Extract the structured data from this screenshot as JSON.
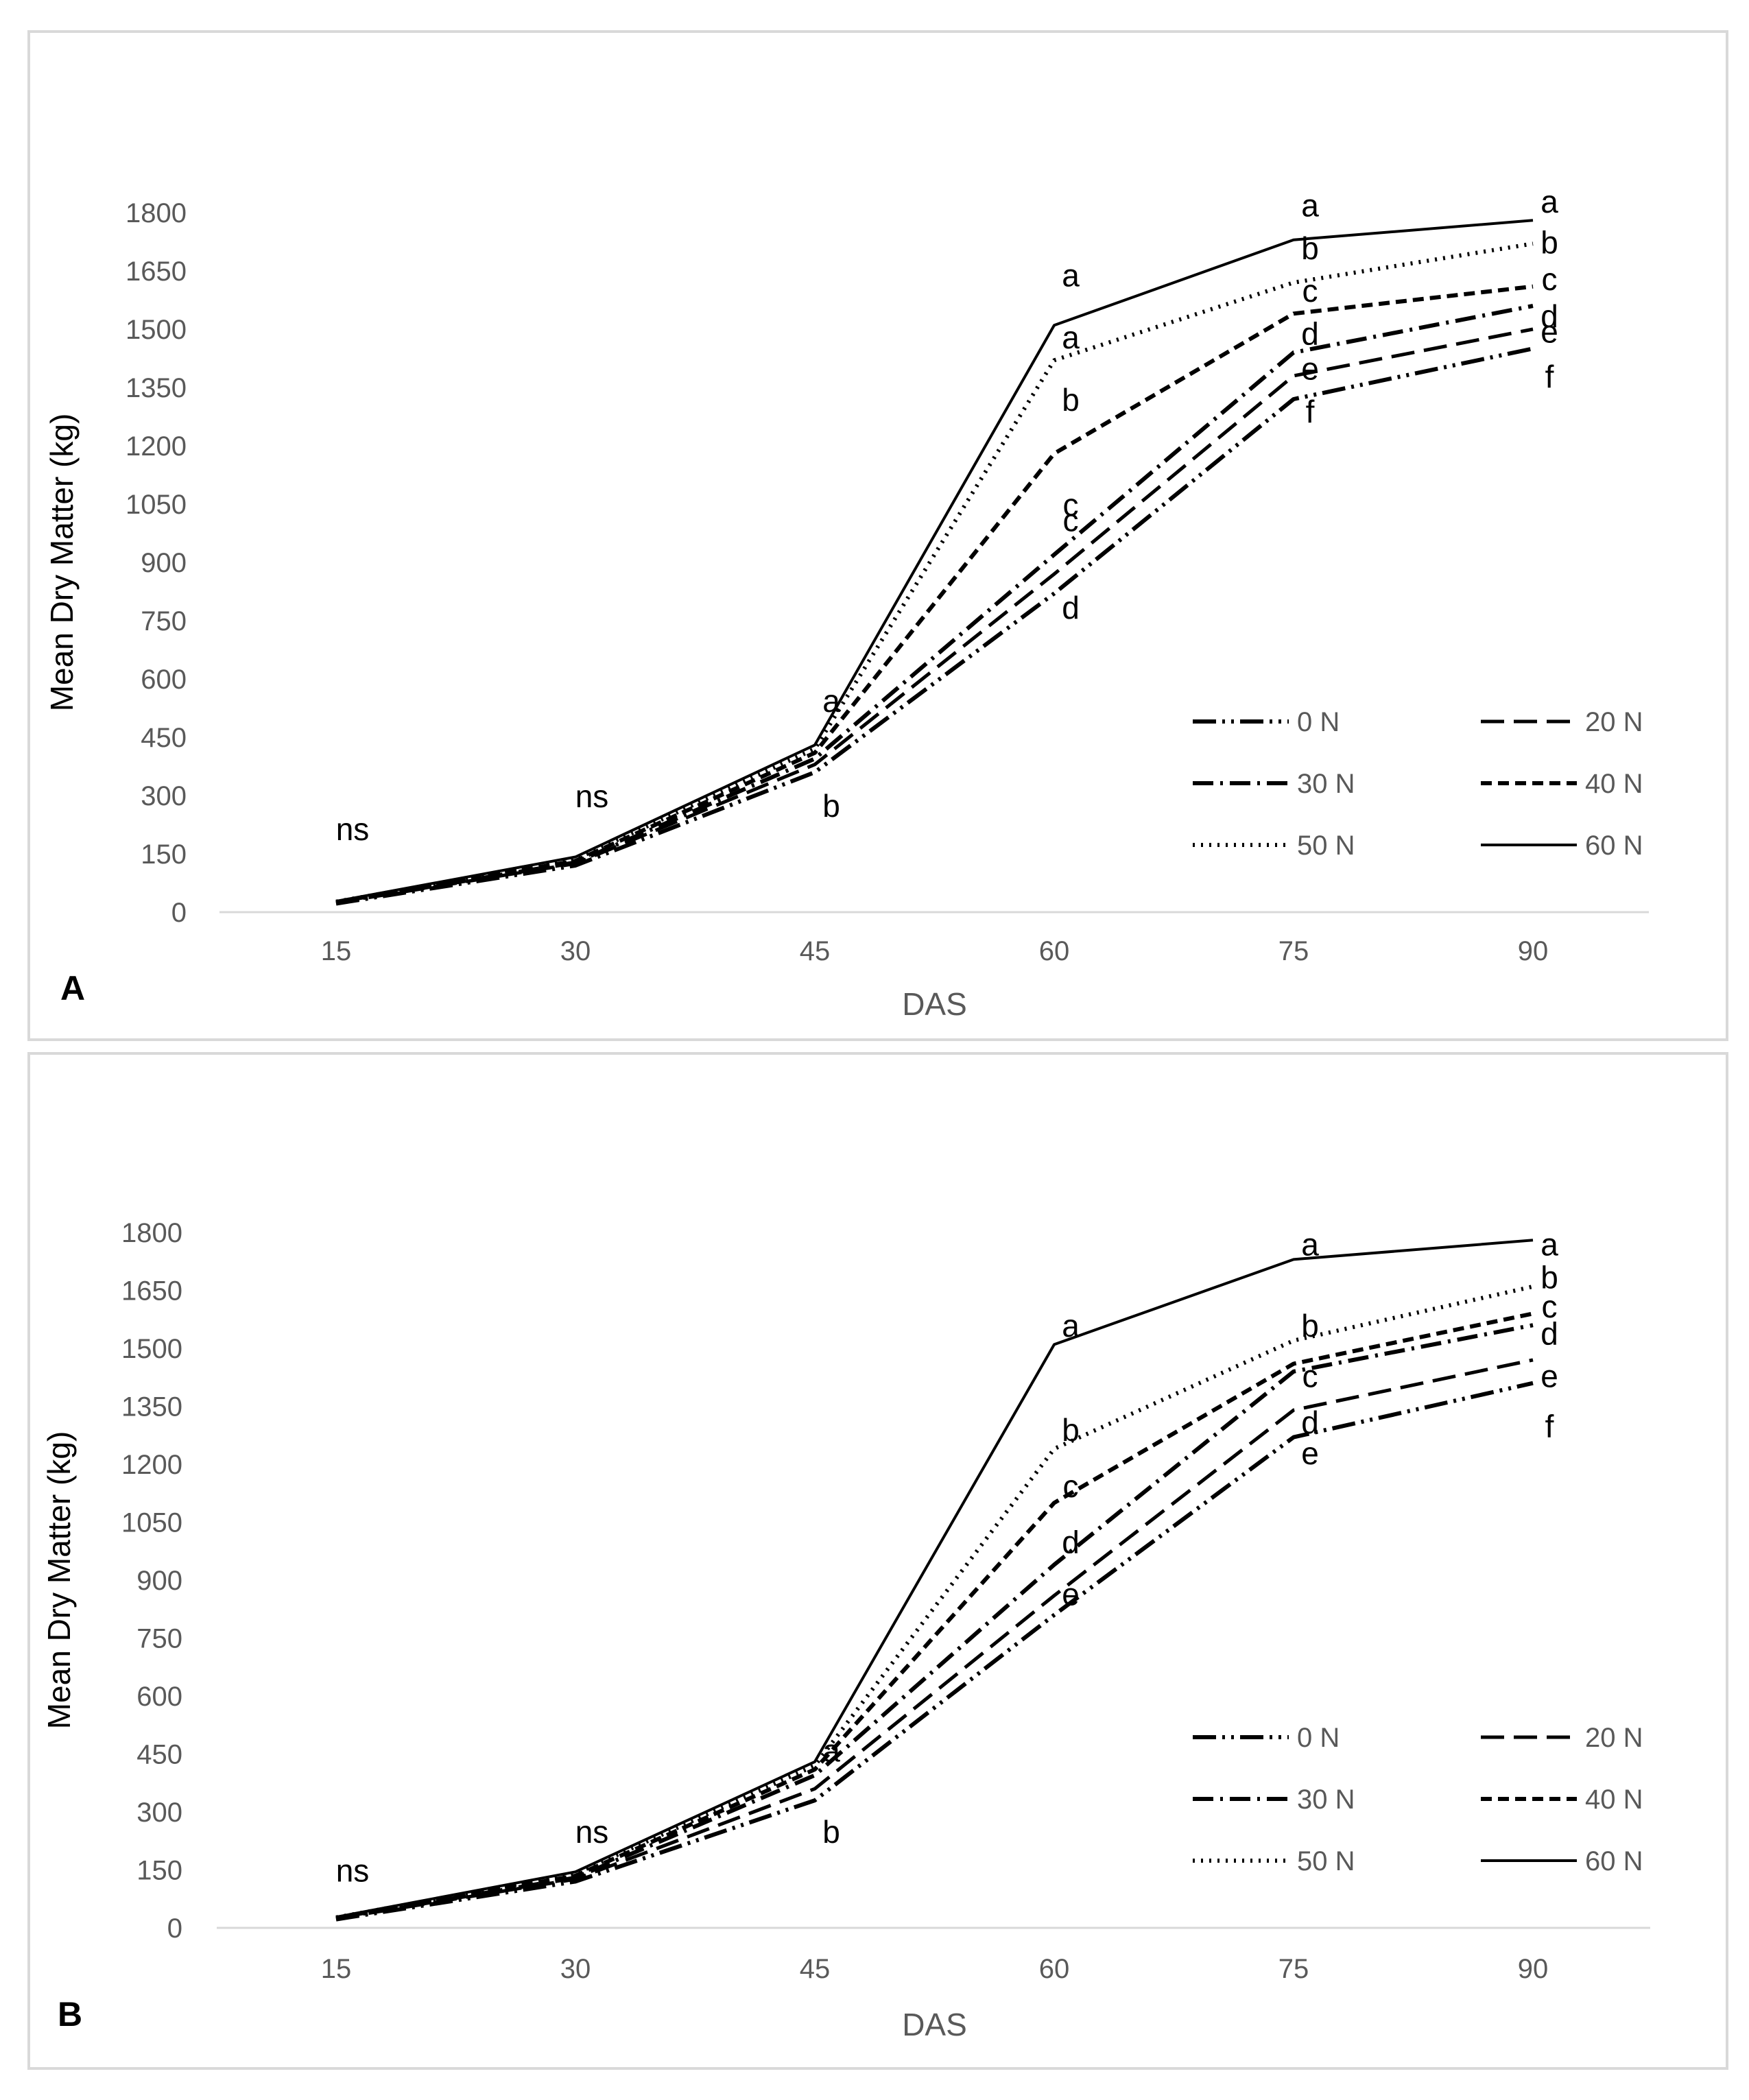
{
  "chart_data": [
    {
      "type": "line",
      "panel_label": "A",
      "xlabel": "DAS",
      "ylabel": "Mean Dry Matter (kg)",
      "ylim": [
        0,
        1800
      ],
      "yticks": [
        0,
        150,
        300,
        450,
        600,
        750,
        900,
        1050,
        1200,
        1350,
        1500,
        1650,
        1800
      ],
      "categories": [
        "15",
        "30",
        "45",
        "60",
        "75",
        "90"
      ],
      "grid": false,
      "legend_position": "bottom-right",
      "series": [
        {
          "name": "0 N",
          "dash": "dashdotdot",
          "values": [
            22,
            120,
            360,
            820,
            1320,
            1450
          ]
        },
        {
          "name": "20 N",
          "dash": "longdash",
          "values": [
            24,
            125,
            380,
            870,
            1380,
            1500
          ]
        },
        {
          "name": "30 N",
          "dash": "dashdot",
          "values": [
            25,
            128,
            395,
            920,
            1440,
            1560
          ]
        },
        {
          "name": "40 N",
          "dash": "dash",
          "values": [
            26,
            132,
            410,
            1180,
            1540,
            1610
          ]
        },
        {
          "name": "50 N",
          "dash": "dot",
          "values": [
            27,
            136,
            420,
            1420,
            1620,
            1720
          ]
        },
        {
          "name": "60 N",
          "dash": "solid",
          "values": [
            28,
            142,
            430,
            1510,
            1730,
            1780
          ]
        }
      ],
      "annotations": [
        {
          "x": "15",
          "y": 210,
          "text": "ns"
        },
        {
          "x": "30",
          "y": 295,
          "text": "ns"
        },
        {
          "x": "45",
          "y": 540,
          "text": "a"
        },
        {
          "x": "45",
          "y": 270,
          "text": "b"
        },
        {
          "x": "60",
          "y": 1635,
          "text": "a"
        },
        {
          "x": "60",
          "y": 1475,
          "text": "a"
        },
        {
          "x": "60",
          "y": 1315,
          "text": "b"
        },
        {
          "x": "60",
          "y": 1045,
          "text": "c"
        },
        {
          "x": "60",
          "y": 1005,
          "text": "c"
        },
        {
          "x": "60",
          "y": 780,
          "text": "d"
        },
        {
          "x": "75",
          "y": 1815,
          "text": "a"
        },
        {
          "x": "75",
          "y": 1705,
          "text": "b"
        },
        {
          "x": "75",
          "y": 1595,
          "text": "c"
        },
        {
          "x": "75",
          "y": 1485,
          "text": "d"
        },
        {
          "x": "75",
          "y": 1395,
          "text": "e"
        },
        {
          "x": "75",
          "y": 1285,
          "text": "f"
        },
        {
          "x": "90",
          "y": 1825,
          "text": "a"
        },
        {
          "x": "90",
          "y": 1720,
          "text": "b"
        },
        {
          "x": "90",
          "y": 1625,
          "text": "c"
        },
        {
          "x": "90",
          "y": 1530,
          "text": "d"
        },
        {
          "x": "90",
          "y": 1490,
          "text": "e"
        },
        {
          "x": "90",
          "y": 1375,
          "text": "f"
        }
      ]
    },
    {
      "type": "line",
      "panel_label": "B",
      "xlabel": "DAS",
      "ylabel": "Mean Dry Matter (kg)",
      "ylim": [
        0,
        1800
      ],
      "yticks": [
        0,
        150,
        300,
        450,
        600,
        750,
        900,
        1050,
        1200,
        1350,
        1500,
        1650,
        1800
      ],
      "categories": [
        "15",
        "30",
        "45",
        "60",
        "75",
        "90"
      ],
      "grid": false,
      "legend_position": "bottom-right",
      "series": [
        {
          "name": "0 N",
          "dash": "dashdotdot",
          "values": [
            22,
            120,
            330,
            810,
            1270,
            1410
          ]
        },
        {
          "name": "20 N",
          "dash": "longdash",
          "values": [
            24,
            126,
            360,
            860,
            1340,
            1470
          ]
        },
        {
          "name": "30 N",
          "dash": "dashdot",
          "values": [
            25,
            130,
            395,
            940,
            1440,
            1560
          ]
        },
        {
          "name": "40 N",
          "dash": "dash",
          "values": [
            26,
            135,
            410,
            1100,
            1460,
            1590
          ]
        },
        {
          "name": "50 N",
          "dash": "dot",
          "values": [
            27,
            140,
            420,
            1240,
            1520,
            1660
          ]
        },
        {
          "name": "60 N",
          "dash": "solid",
          "values": [
            28,
            145,
            430,
            1510,
            1730,
            1780
          ]
        }
      ],
      "annotations": [
        {
          "x": "15",
          "y": 145,
          "text": "ns"
        },
        {
          "x": "30",
          "y": 245,
          "text": "ns"
        },
        {
          "x": "45",
          "y": 455,
          "text": "a"
        },
        {
          "x": "45",
          "y": 245,
          "text": "b"
        },
        {
          "x": "60",
          "y": 1555,
          "text": "a"
        },
        {
          "x": "60",
          "y": 1285,
          "text": "b"
        },
        {
          "x": "60",
          "y": 1140,
          "text": "c"
        },
        {
          "x": "60",
          "y": 995,
          "text": "d"
        },
        {
          "x": "60",
          "y": 860,
          "text": "e"
        },
        {
          "x": "75",
          "y": 1765,
          "text": "a"
        },
        {
          "x": "75",
          "y": 1555,
          "text": "b"
        },
        {
          "x": "75",
          "y": 1425,
          "text": "c"
        },
        {
          "x": "75",
          "y": 1305,
          "text": "d"
        },
        {
          "x": "75",
          "y": 1225,
          "text": "e"
        },
        {
          "x": "90",
          "y": 1765,
          "text": "a"
        },
        {
          "x": "90",
          "y": 1680,
          "text": "b"
        },
        {
          "x": "90",
          "y": 1605,
          "text": "c"
        },
        {
          "x": "90",
          "y": 1535,
          "text": "d"
        },
        {
          "x": "90",
          "y": 1425,
          "text": "e"
        },
        {
          "x": "90",
          "y": 1295,
          "text": "f"
        }
      ]
    }
  ]
}
